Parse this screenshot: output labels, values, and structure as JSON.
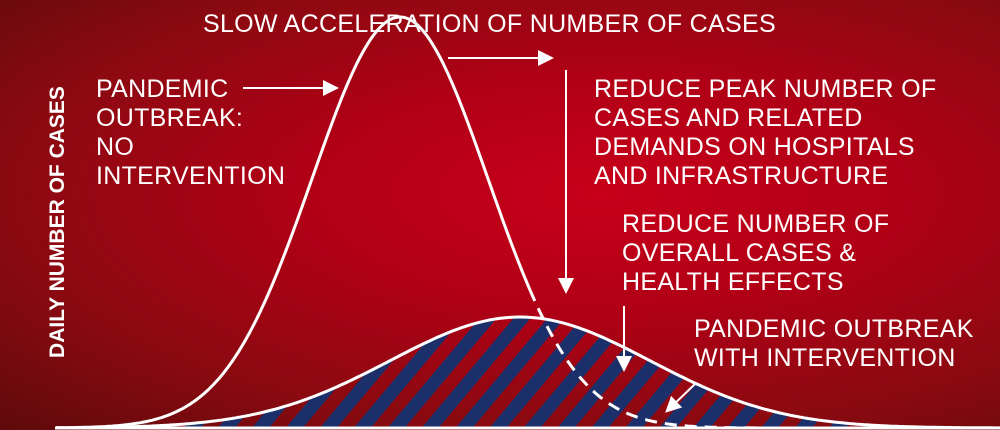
{
  "title": "SLOW ACCELERATION OF NUMBER OF CASES",
  "y_axis_label": "DAILY NUMBER OF CASES",
  "annotations": {
    "no_intervention": "PANDEMIC\nOUTBREAK:\nNO\nINTERVENTION",
    "reduce_peak": "REDUCE PEAK NUMBER OF\nCASES AND RELATED\nDEMANDS ON HOSPITALS\nAND INFRASTRUCTURE",
    "reduce_overall": "REDUCE NUMBER OF\nOVERALL CASES &\nHEALTH EFFECTS",
    "with_intervention": "PANDEMIC OUTBREAK\nWITH INTERVENTION"
  },
  "colors": {
    "background": "#b00016",
    "line": "#ffffff",
    "hatch": "#1b2f6b"
  },
  "curves": {
    "no_intervention": {
      "style": "solid then dashed on the right tail",
      "relative_peak": 1.0
    },
    "with_intervention": {
      "style": "solid, hatched fill",
      "relative_peak": 0.27
    }
  }
}
